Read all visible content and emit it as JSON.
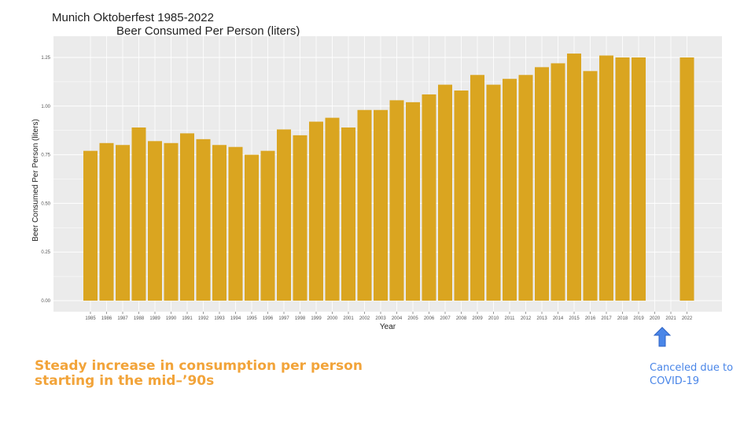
{
  "title": "Munich Oktoberfest 1985-2022",
  "subtitle": "Beer Consumed Per Person (liters)",
  "caption": {
    "line1": "Steady increase in consumption per person",
    "line2": "starting in the mid–’90s"
  },
  "annotation": {
    "line1": "Canceled due to",
    "line2": "COVID-19",
    "icon": "arrow-up-icon"
  },
  "colors": {
    "bar": "#DAA520",
    "panel": "#EBEBEB",
    "grid": "#FFFFFF",
    "caption": "#F2A43A",
    "annotation": "#4A86E8"
  },
  "chart_data": {
    "type": "bar",
    "title": "Munich Oktoberfest 1985-2022",
    "subtitle": "Beer Consumed Per Person (liters)",
    "xlabel": "Year",
    "ylabel": "Beer Consumed Per Person (liters)",
    "ylim": [
      0,
      1.25
    ],
    "yticks": [
      "0.00",
      "0.25",
      "0.50",
      "0.75",
      "1.00",
      "1.25"
    ],
    "grid": true,
    "categories": [
      "1985",
      "1986",
      "1987",
      "1988",
      "1989",
      "1990",
      "1991",
      "1992",
      "1993",
      "1994",
      "1995",
      "1996",
      "1997",
      "1998",
      "1999",
      "2000",
      "2001",
      "2002",
      "2003",
      "2004",
      "2005",
      "2006",
      "2007",
      "2008",
      "2009",
      "2010",
      "2011",
      "2012",
      "2013",
      "2014",
      "2015",
      "2016",
      "2017",
      "2018",
      "2019",
      "2020",
      "2021",
      "2022"
    ],
    "values": [
      0.77,
      0.81,
      0.8,
      0.89,
      0.82,
      0.81,
      0.86,
      0.83,
      0.8,
      0.79,
      0.75,
      0.77,
      0.88,
      0.85,
      0.92,
      0.94,
      0.89,
      0.98,
      0.98,
      1.03,
      1.02,
      1.06,
      1.11,
      1.08,
      1.16,
      1.11,
      1.14,
      1.16,
      1.2,
      1.22,
      1.27,
      1.18,
      1.26,
      1.25,
      1.25,
      null,
      null,
      1.25
    ]
  }
}
